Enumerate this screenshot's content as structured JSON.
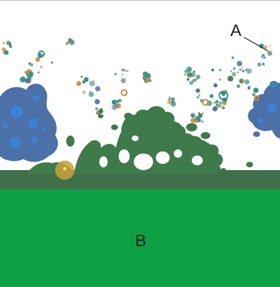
{
  "colors": {
    "background": "#ffffff",
    "top_border": "#cfcfcf",
    "ground_band": "#3f6f49",
    "base_region": "#0da045",
    "dark_green_mass": "#3f7a4a",
    "blue_mass": "#4c70a8",
    "blue_spot": "#3b82d6",
    "teal_spot": "#2f8f8b",
    "orange_spot": "#c98a3c",
    "yellow_disc": "#c9a23c",
    "leader_line": "#1a1a1a"
  },
  "labels": {
    "a": "A",
    "b": "B"
  }
}
